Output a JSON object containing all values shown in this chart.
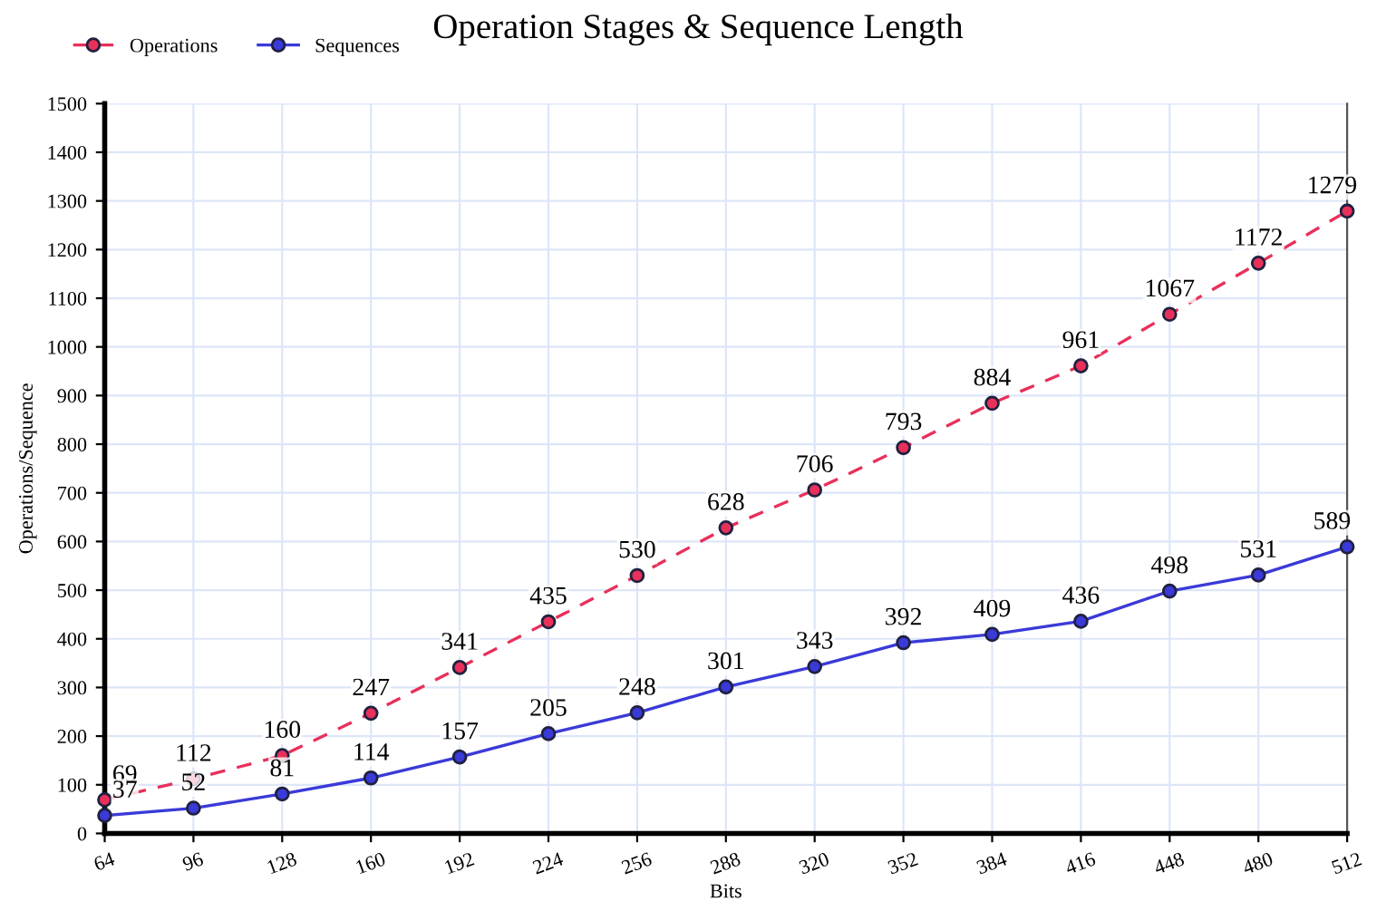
{
  "chart_data": {
    "type": "line",
    "title": "Operation Stages & Sequence Length",
    "xlabel": "Bits",
    "ylabel": "Operations/Sequence",
    "x": [
      64,
      96,
      128,
      160,
      192,
      224,
      256,
      288,
      320,
      352,
      384,
      416,
      448,
      480,
      512
    ],
    "series": [
      {
        "name": "Operations",
        "color": "#e8305a",
        "line_style": "dashed",
        "values": [
          69,
          112,
          160,
          247,
          341,
          435,
          530,
          628,
          706,
          793,
          884,
          961,
          1067,
          1172,
          1279
        ]
      },
      {
        "name": "Sequences",
        "color": "#3a3ad8",
        "line_style": "solid",
        "values": [
          37,
          52,
          81,
          114,
          157,
          205,
          248,
          301,
          343,
          392,
          409,
          436,
          498,
          531,
          589
        ]
      }
    ],
    "xlim": [
      64,
      512
    ],
    "xticks": [
      64,
      96,
      128,
      160,
      192,
      224,
      256,
      288,
      320,
      352,
      384,
      416,
      448,
      480,
      512
    ],
    "ylim": [
      0,
      1500
    ],
    "yticks": [
      0,
      100,
      200,
      300,
      400,
      500,
      600,
      700,
      800,
      900,
      1000,
      1100,
      1200,
      1300,
      1400,
      1500
    ],
    "grid": true,
    "legend": "top left",
    "marker": "circle",
    "data_labels": true
  }
}
